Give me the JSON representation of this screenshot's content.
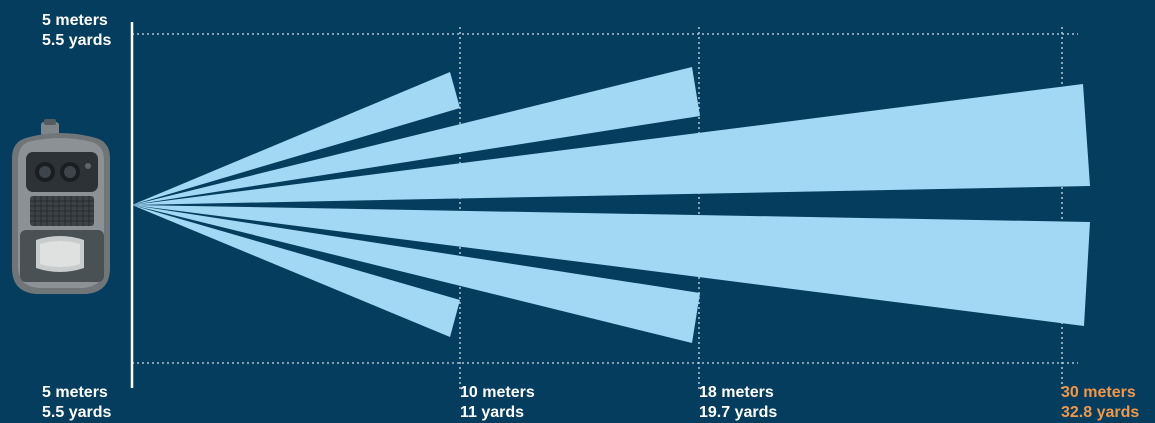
{
  "colors": {
    "background": "#053d5e",
    "beam": "#a3d8f4",
    "axis": "#ffffff",
    "guide": "#d0dde6",
    "label": "#ffffff",
    "highlight_label": "#f0974a"
  },
  "icons": {
    "sensor": "motion-sensor-camera-icon"
  },
  "labels": {
    "top_left": {
      "meters": "5 meters",
      "yards": "5.5 yards"
    },
    "bottom_left": {
      "meters": "5 meters",
      "yards": "5.5 yards"
    },
    "mark_10": {
      "meters": "10 meters",
      "yards": "11 yards"
    },
    "mark_18": {
      "meters": "18 meters",
      "yards": "19.7 yards"
    },
    "mark_30": {
      "meters": "30 meters",
      "yards": "32.8 yards"
    }
  },
  "detection": {
    "distances_m": [
      10,
      18,
      30
    ],
    "beams": [
      {
        "reach_m": 10,
        "side": "upper"
      },
      {
        "reach_m": 18,
        "side": "upper"
      },
      {
        "reach_m": 30,
        "side": "upper"
      },
      {
        "reach_m": 30,
        "side": "lower"
      },
      {
        "reach_m": 18,
        "side": "lower"
      },
      {
        "reach_m": 10,
        "side": "lower"
      }
    ]
  }
}
